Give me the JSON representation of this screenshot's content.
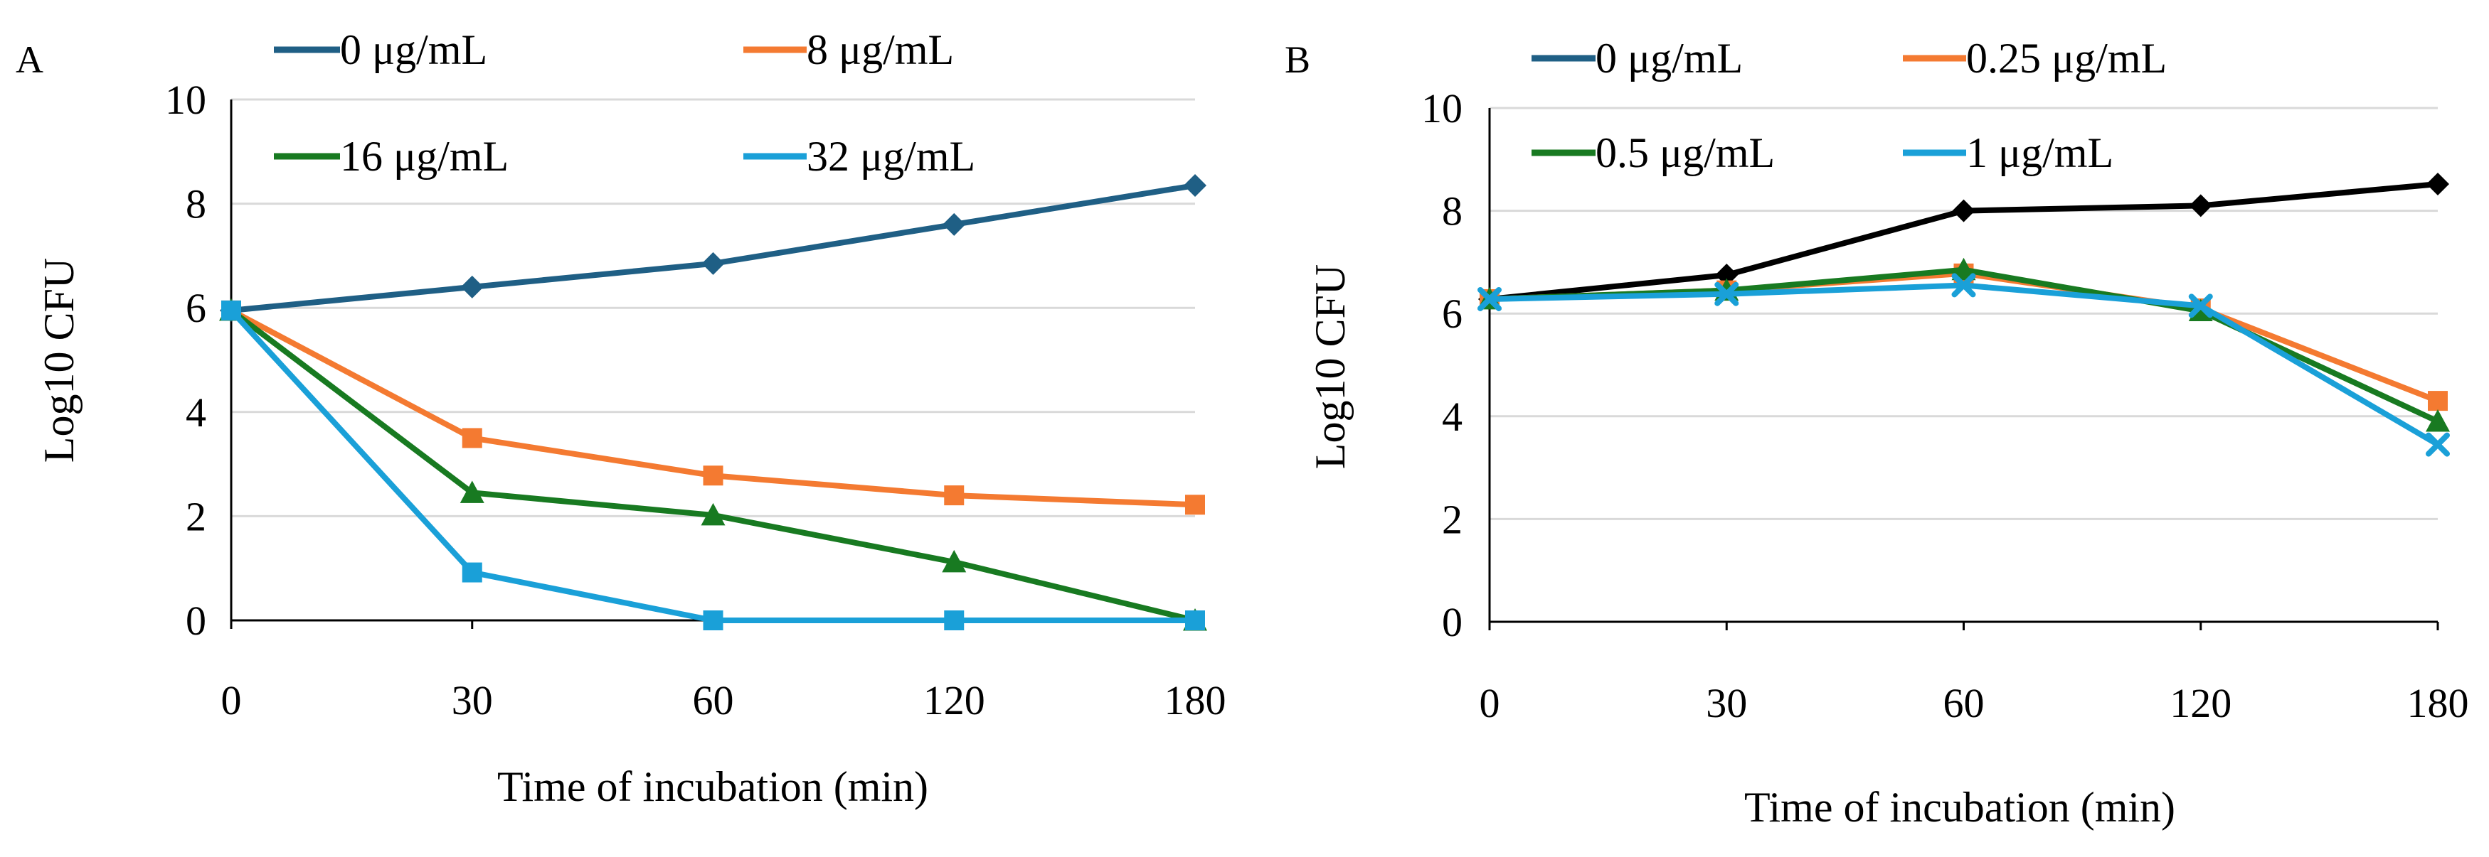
{
  "chart_data": [
    {
      "type": "line",
      "panel_label": "A",
      "categories": [
        "0",
        "30",
        "60",
        "120",
        "180"
      ],
      "xlabel": "Time of incubation (min)",
      "ylabel": "Log10 CFU",
      "ylim": [
        0,
        10
      ],
      "yticks": [
        0,
        2,
        4,
        6,
        8,
        10
      ],
      "grid": true,
      "series": [
        {
          "name": "0 μg/mL",
          "color": "#1f5f85",
          "marker": "diamond",
          "values": [
            5.95,
            6.4,
            6.85,
            7.6,
            8.35
          ]
        },
        {
          "name": "8 μg/mL",
          "color": "#f47a31",
          "marker": "square",
          "values": [
            5.95,
            3.5,
            2.78,
            2.4,
            2.22
          ]
        },
        {
          "name": "16 μg/mL",
          "color": "#187a21",
          "marker": "triangle",
          "values": [
            5.95,
            2.45,
            2.02,
            1.12,
            0.0
          ]
        },
        {
          "name": "32 μg/mL",
          "color": "#1aa0d8",
          "marker": "square",
          "values": [
            5.95,
            0.92,
            0.0,
            0.0,
            0.0
          ]
        }
      ]
    },
    {
      "type": "line",
      "panel_label": "B",
      "categories": [
        "0",
        "30",
        "60",
        "120",
        "180"
      ],
      "xlabel": "Time of incubation (min)",
      "ylabel": "Log10 CFU",
      "ylim": [
        0,
        10
      ],
      "yticks": [
        0,
        2,
        4,
        6,
        8,
        10
      ],
      "grid": true,
      "legend_colors": [
        "#1f5f85",
        "#f47a31",
        "#187a21",
        "#1aa0d8"
      ],
      "series": [
        {
          "name": "0 μg/mL",
          "color": "#000000",
          "marker": "diamond",
          "values": [
            6.28,
            6.75,
            8.0,
            8.1,
            8.52
          ]
        },
        {
          "name": "0.25 μg/mL",
          "color": "#f47a31",
          "marker": "square",
          "values": [
            6.28,
            6.45,
            6.78,
            6.1,
            4.3
          ]
        },
        {
          "name": "0.5 μg/mL",
          "color": "#187a21",
          "marker": "triangle",
          "values": [
            6.28,
            6.45,
            6.85,
            6.05,
            3.9
          ]
        },
        {
          "name": "1 μg/mL",
          "color": "#1aa0d8",
          "marker": "x",
          "values": [
            6.28,
            6.38,
            6.55,
            6.15,
            3.45
          ]
        }
      ]
    }
  ]
}
